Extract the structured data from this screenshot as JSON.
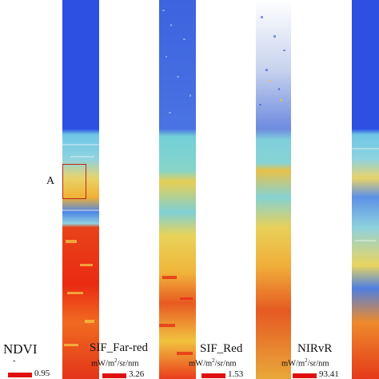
{
  "panels": [
    {
      "key": "ndvi",
      "title": "NDVI",
      "unit_line": "-",
      "scale_max": "0.95",
      "texture": "smooth"
    },
    {
      "key": "sif_far",
      "title": "SIF_Far-red",
      "unit_prefix": "mW/m",
      "unit_sup": "2",
      "unit_suffix": "/sr/nm",
      "scale_max": "3.26",
      "texture": "noisy"
    },
    {
      "key": "sif_red",
      "title": "SIF_Red",
      "unit_prefix": "mW/m",
      "unit_sup": "2",
      "unit_suffix": "/sr/nm",
      "scale_max": "1.53",
      "texture": "speckle"
    },
    {
      "key": "nirvr",
      "title": "NIRvR",
      "unit_prefix": "mW/m",
      "unit_sup": "2",
      "unit_suffix": "/sr/nm",
      "scale_max": "93.41",
      "texture": "smooth"
    }
  ],
  "roi": {
    "label": "A"
  },
  "colors": {
    "water": "#2f4fe0",
    "accent": "#e01010",
    "roi": "#b4281e"
  }
}
